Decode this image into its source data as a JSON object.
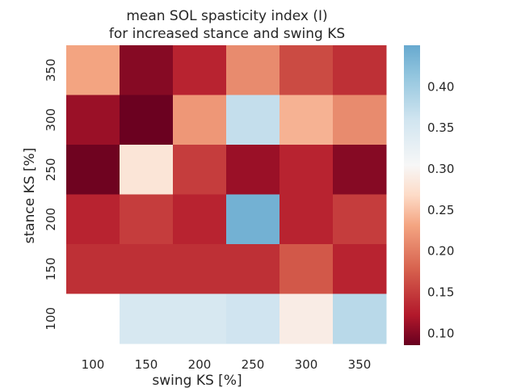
{
  "chart_data": {
    "type": "heatmap",
    "title_lines": [
      "mean SOL spasticity index (I)",
      "for increased stance and swing KS"
    ],
    "xlabel": "swing KS [%]",
    "ylabel": "stance KS [%]",
    "x_categories": [
      "100",
      "150",
      "200",
      "250",
      "300",
      "350"
    ],
    "y_categories": [
      "350",
      "300",
      "250",
      "200",
      "150",
      "100"
    ],
    "values": [
      [
        0.23,
        0.1,
        0.13,
        0.21,
        0.16,
        0.14
      ],
      [
        0.11,
        0.087,
        0.22,
        0.37,
        0.24,
        0.21
      ],
      [
        0.089,
        0.28,
        0.15,
        0.11,
        0.13,
        0.1
      ],
      [
        0.13,
        0.15,
        0.13,
        0.44,
        0.13,
        0.15
      ],
      [
        0.14,
        0.14,
        0.14,
        0.14,
        0.17,
        0.13
      ],
      [
        null,
        0.35,
        0.35,
        0.36,
        0.29,
        0.38
      ]
    ],
    "colorbar": {
      "min": 0.085,
      "max": 0.45,
      "ticks": [
        0.1,
        0.15,
        0.2,
        0.25,
        0.3,
        0.35,
        0.4
      ],
      "tick_labels": [
        "0.10",
        "0.15",
        "0.20",
        "0.25",
        "0.30",
        "0.35",
        "0.40"
      ],
      "colormap": "RdBu"
    },
    "grid": false
  }
}
